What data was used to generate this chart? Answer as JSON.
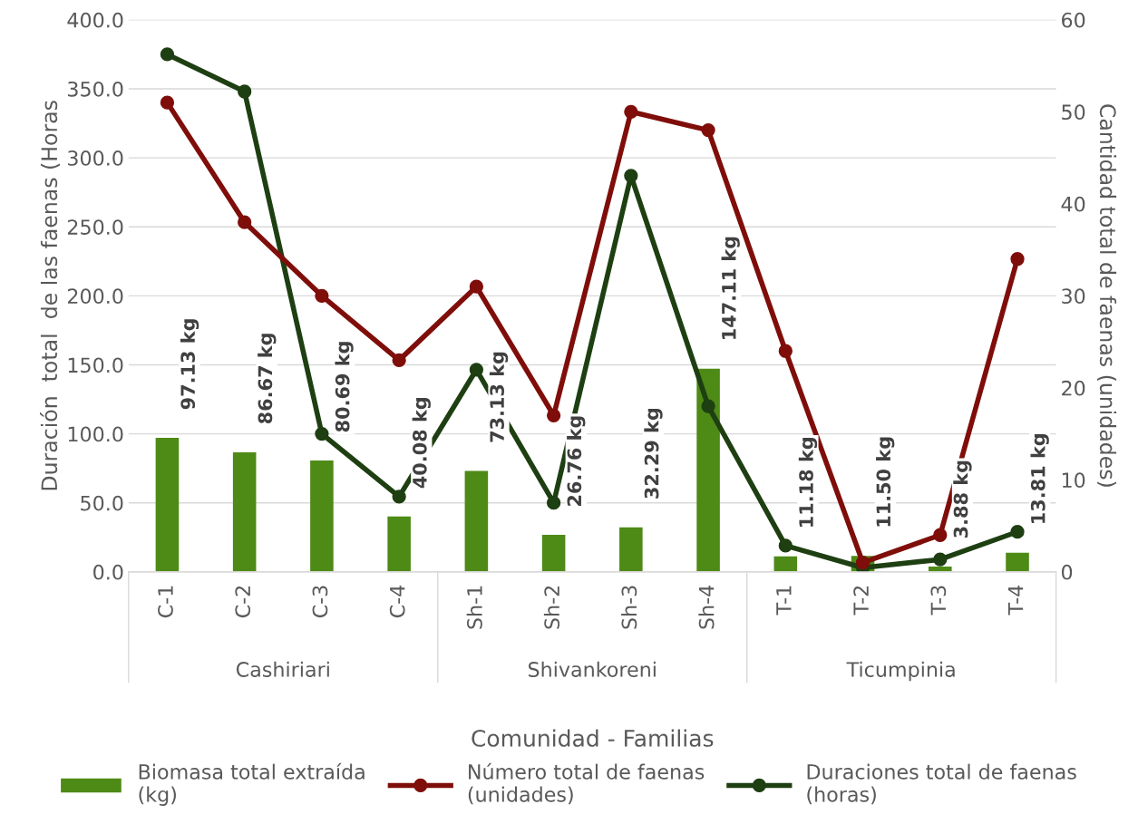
{
  "chart_data": {
    "type": "bar",
    "categories": [
      "C-1",
      "C-2",
      "C-3",
      "C-4",
      "Sh-1",
      "Sh-2",
      "Sh-3",
      "Sh-4",
      "T-1",
      "T-2",
      "T-3",
      "T-4"
    ],
    "xlabel": "Comunidad - Familias",
    "ylabel": "Duración  total  de las faenas (Horas",
    "y2label": "Cantidad total de faenas (unidades)",
    "annotations": [
      "Cashiriari",
      "Shivankoreni",
      "Ticumpinia"
    ],
    "series": [
      {
        "name": "Biomasa total extraída\n(kg)",
        "color": "#4e8a16",
        "values": [
          97.13,
          86.67,
          80.69,
          40.08,
          73.13,
          26.76,
          32.29,
          147.11,
          11.18,
          11.5,
          3.88,
          13.81
        ],
        "value_labels": [
          "97.13 kg",
          "86.67 kg",
          "80.69 kg",
          "40.08 kg",
          "73.13 kg",
          "26.76 kg",
          "32.29 kg",
          "147.11 kg",
          "11.18 kg",
          "11.50 kg",
          "3.88 kg",
          "13.81 kg"
        ]
      },
      {
        "name": "Número total de faenas\n(unidades)",
        "type": "line",
        "axis": "y2",
        "color": "#7f0e0a",
        "marker": "circle",
        "values": [
          51,
          38,
          30,
          23,
          31,
          17,
          50,
          48,
          24,
          1,
          4,
          34
        ]
      },
      {
        "name": "Duraciones total de faenas\n(horas)",
        "type": "line",
        "color": "#1e3f12",
        "marker": "circle",
        "values": [
          375,
          348,
          100,
          54.5,
          146.5,
          50,
          287,
          120,
          19,
          3,
          9,
          29
        ]
      }
    ],
    "ylim": [
      0,
      400
    ],
    "yticks": [
      {
        "value": 0,
        "label": "0.0"
      },
      {
        "value": 50,
        "label": "50.0"
      },
      {
        "value": 100,
        "label": "100.0"
      },
      {
        "value": 150,
        "label": "150.0"
      },
      {
        "value": 200,
        "label": "200.0"
      },
      {
        "value": 250,
        "label": "250.0"
      },
      {
        "value": 300,
        "label": "300.0"
      },
      {
        "value": 350,
        "label": "350.0"
      },
      {
        "value": 400,
        "label": "400.0"
      }
    ],
    "y2lim": [
      0,
      60
    ],
    "y2ticks": [
      0,
      10,
      20,
      30,
      40,
      50,
      60
    ],
    "grid": "y",
    "legend": "bottom"
  }
}
